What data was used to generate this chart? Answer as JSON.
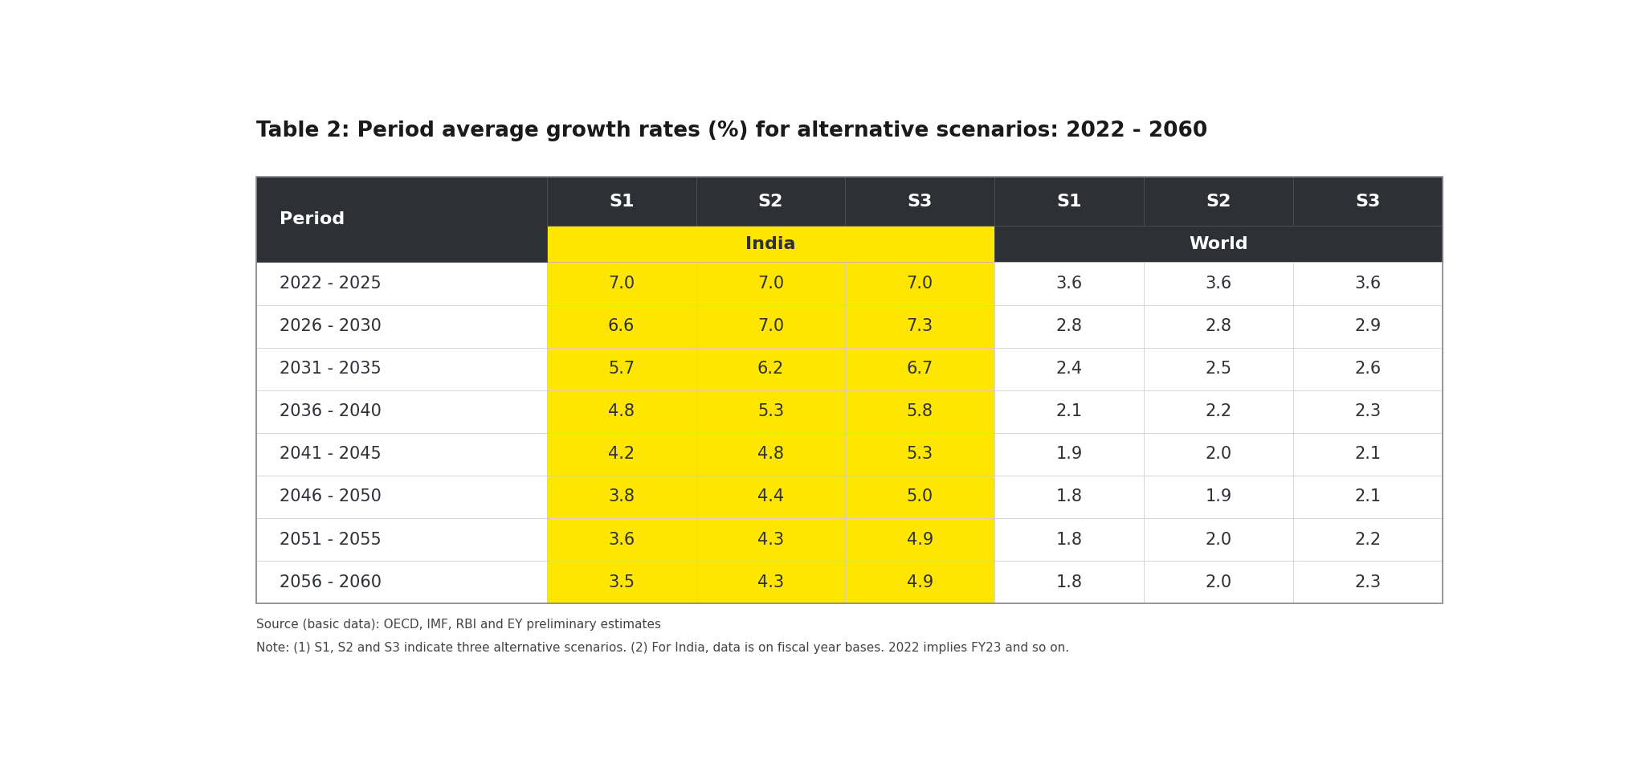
{
  "title": "Table 2: Period average growth rates (%) for alternative scenarios: 2022 - 2060",
  "periods": [
    "2022 - 2025",
    "2026 - 2030",
    "2031 - 2035",
    "2036 - 2040",
    "2041 - 2045",
    "2046 - 2050",
    "2051 - 2055",
    "2056 - 2060"
  ],
  "india_s1": [
    7.0,
    6.6,
    5.7,
    4.8,
    4.2,
    3.8,
    3.6,
    3.5
  ],
  "india_s2": [
    7.0,
    7.0,
    6.2,
    5.3,
    4.8,
    4.4,
    4.3,
    4.3
  ],
  "india_s3": [
    7.0,
    7.3,
    6.7,
    5.8,
    5.3,
    5.0,
    4.9,
    4.9
  ],
  "world_s1": [
    3.6,
    2.8,
    2.4,
    2.1,
    1.9,
    1.8,
    1.8,
    1.8
  ],
  "world_s2": [
    3.6,
    2.8,
    2.5,
    2.2,
    2.0,
    1.9,
    2.0,
    2.0
  ],
  "world_s3": [
    3.6,
    2.9,
    2.6,
    2.3,
    2.1,
    2.1,
    2.2,
    2.3
  ],
  "header_bg": "#2d3035",
  "header_text": "#ffffff",
  "india_bg": "#ffe600",
  "india_text": "#2d3035",
  "world_bg": "#2d3035",
  "world_text": "#ffffff",
  "row_text": "#2d3035",
  "period_col_text": "#2d3035",
  "footnote1": "Source (basic data): OECD, IMF, RBI and EY preliminary estimates",
  "footnote2": "Note: (1) S1, S2 and S3 indicate three alternative scenarios. (2) For India, data is on fiscal year bases. 2022 implies FY23 and so on.",
  "bg_color": "#ffffff",
  "title_fontsize": 19,
  "header_fontsize": 16,
  "data_fontsize": 15,
  "footnote_fontsize": 11
}
